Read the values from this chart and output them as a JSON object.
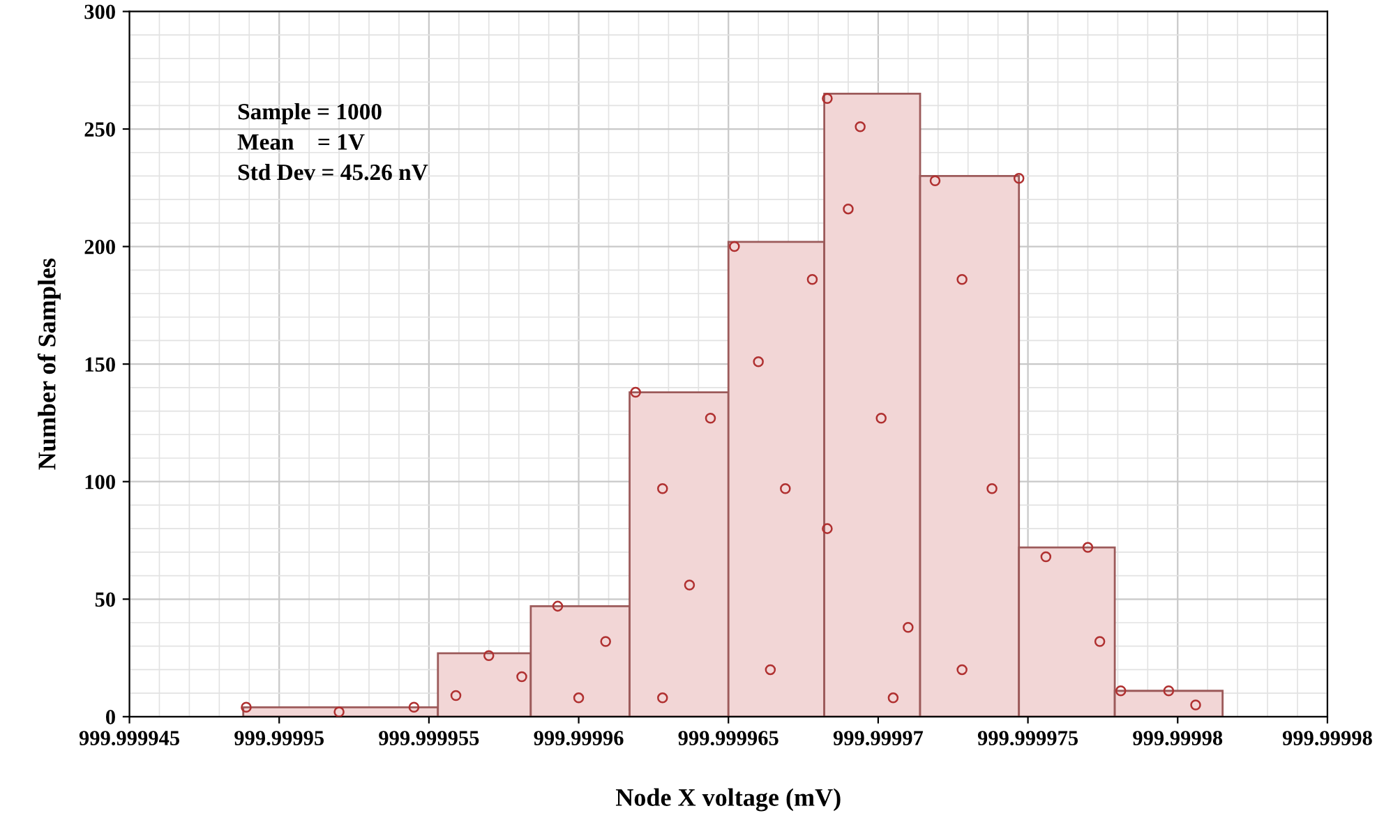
{
  "chart_data": {
    "type": "histogram",
    "xlabel": "Node X voltage (mV)",
    "ylabel": "Number of Samples",
    "annotations": [
      "Sample = 1000",
      "Mean    = 1V",
      "Std Dev = 45.26 nV"
    ],
    "bins": [
      999.9999488,
      999.9999553,
      999.9999584,
      999.9999617,
      999.999965,
      999.9999682,
      999.9999714,
      999.9999747,
      999.9999779,
      999.9999815
    ],
    "values": [
      4,
      27,
      47,
      138,
      202,
      265,
      230,
      72,
      11
    ],
    "color": "#f2d6d6",
    "series": [
      {
        "type": "scatter",
        "color": "#b03030",
        "marker": "circle",
        "x": [
          999.9999489,
          999.999952,
          999.9999545,
          999.9999559,
          999.999957,
          999.9999581,
          999.9999593,
          999.9999609,
          999.9999619,
          999.9999628,
          999.9999637,
          999.9999644,
          999.9999652,
          999.999966,
          999.9999669,
          999.9999678,
          999.9999683,
          999.999969,
          999.9999694,
          999.9999701,
          999.999971,
          999.9999719,
          999.9999728,
          999.9999738,
          999.9999747,
          999.9999756,
          999.999977,
          999.9999774,
          999.9999781,
          999.9999797,
          999.9999806,
          999.9999683,
          999.9999664,
          999.9999705,
          999.9999728,
          999.9999628,
          999.99996
        ],
        "values": [
          4,
          2,
          4,
          9,
          26,
          17,
          47,
          32,
          138,
          97,
          56,
          127,
          200,
          151,
          97,
          186,
          263,
          216,
          251,
          127,
          38,
          228,
          186,
          97,
          229,
          68,
          72,
          32,
          11,
          11,
          5,
          80,
          20,
          8,
          20,
          8,
          8
        ]
      }
    ],
    "xlim": [
      999.999945,
      999.999985
    ],
    "xticks": [
      999.999945,
      999.99995,
      999.999955,
      999.99996,
      999.999965,
      999.99997,
      999.999975,
      999.99998,
      {
        "value": 999.999985,
        "label": "999.99998"
      }
    ],
    "ylim": [
      0,
      300
    ],
    "yticks": [
      0,
      50,
      100,
      150,
      200,
      250,
      300
    ],
    "grid": true
  }
}
